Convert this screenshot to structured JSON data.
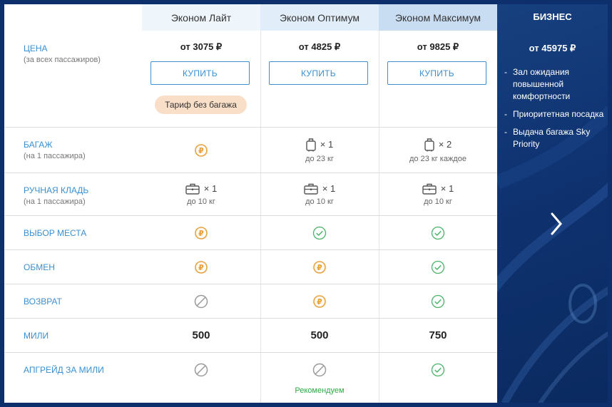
{
  "columns": [
    {
      "name": "Эконом Лайт",
      "price": "от 3075 ₽",
      "buy": "КУПИТЬ",
      "badge": "Тариф без багажа"
    },
    {
      "name": "Эконом Оптимум",
      "price": "от 4825 ₽",
      "buy": "КУПИТЬ"
    },
    {
      "name": "Эконом Максимум",
      "price": "от 9825 ₽",
      "buy": "КУПИТЬ"
    }
  ],
  "business": {
    "name": "БИЗНЕС",
    "price": "от 45975 ₽",
    "features": [
      "Зал ожидания повышенной комфортности",
      "Приоритетная посадка",
      "Выдача багажа Sky Priority"
    ]
  },
  "rows": {
    "price": {
      "label": "ЦЕНА",
      "sub": "(за всех пассажиров)"
    },
    "baggage": {
      "label": "БАГАЖ",
      "sub": "(на 1 пассажира)",
      "cells": [
        {
          "icon": "ruble-icon"
        },
        {
          "count": "× 1",
          "weight": "до 23 кг"
        },
        {
          "count": "× 2",
          "weight": "до 23 кг каждое"
        }
      ]
    },
    "hand": {
      "label": "РУЧНАЯ КЛАДЬ",
      "sub": "(на 1 пассажира)",
      "cells": [
        {
          "count": "× 1",
          "weight": "до 10 кг"
        },
        {
          "count": "× 1",
          "weight": "до 10 кг"
        },
        {
          "count": "× 1",
          "weight": "до 10 кг"
        }
      ]
    },
    "seat": {
      "label": "ВЫБОР МЕСТА",
      "icons": [
        "ruble-icon",
        "check-icon",
        "check-icon"
      ]
    },
    "exchange": {
      "label": "ОБМЕН",
      "icons": [
        "ruble-icon",
        "ruble-icon",
        "check-icon"
      ]
    },
    "refund": {
      "label": "ВОЗВРАТ",
      "icons": [
        "forbidden-icon",
        "ruble-icon",
        "check-icon"
      ]
    },
    "miles": {
      "label": "МИЛИ",
      "values": [
        "500",
        "500",
        "750"
      ]
    },
    "upgrade": {
      "label": "АПГРЕЙД ЗА МИЛИ",
      "icons": [
        "forbidden-icon",
        "forbidden-icon",
        "check-icon"
      ],
      "recommend": "Рекомендуем"
    }
  },
  "colors": {
    "accent": "#3a8fd0",
    "ruble": "#e8a13c",
    "check": "#4cb36a",
    "forbidden": "#9a9a9a",
    "business_bg": "#0d2f6b"
  }
}
